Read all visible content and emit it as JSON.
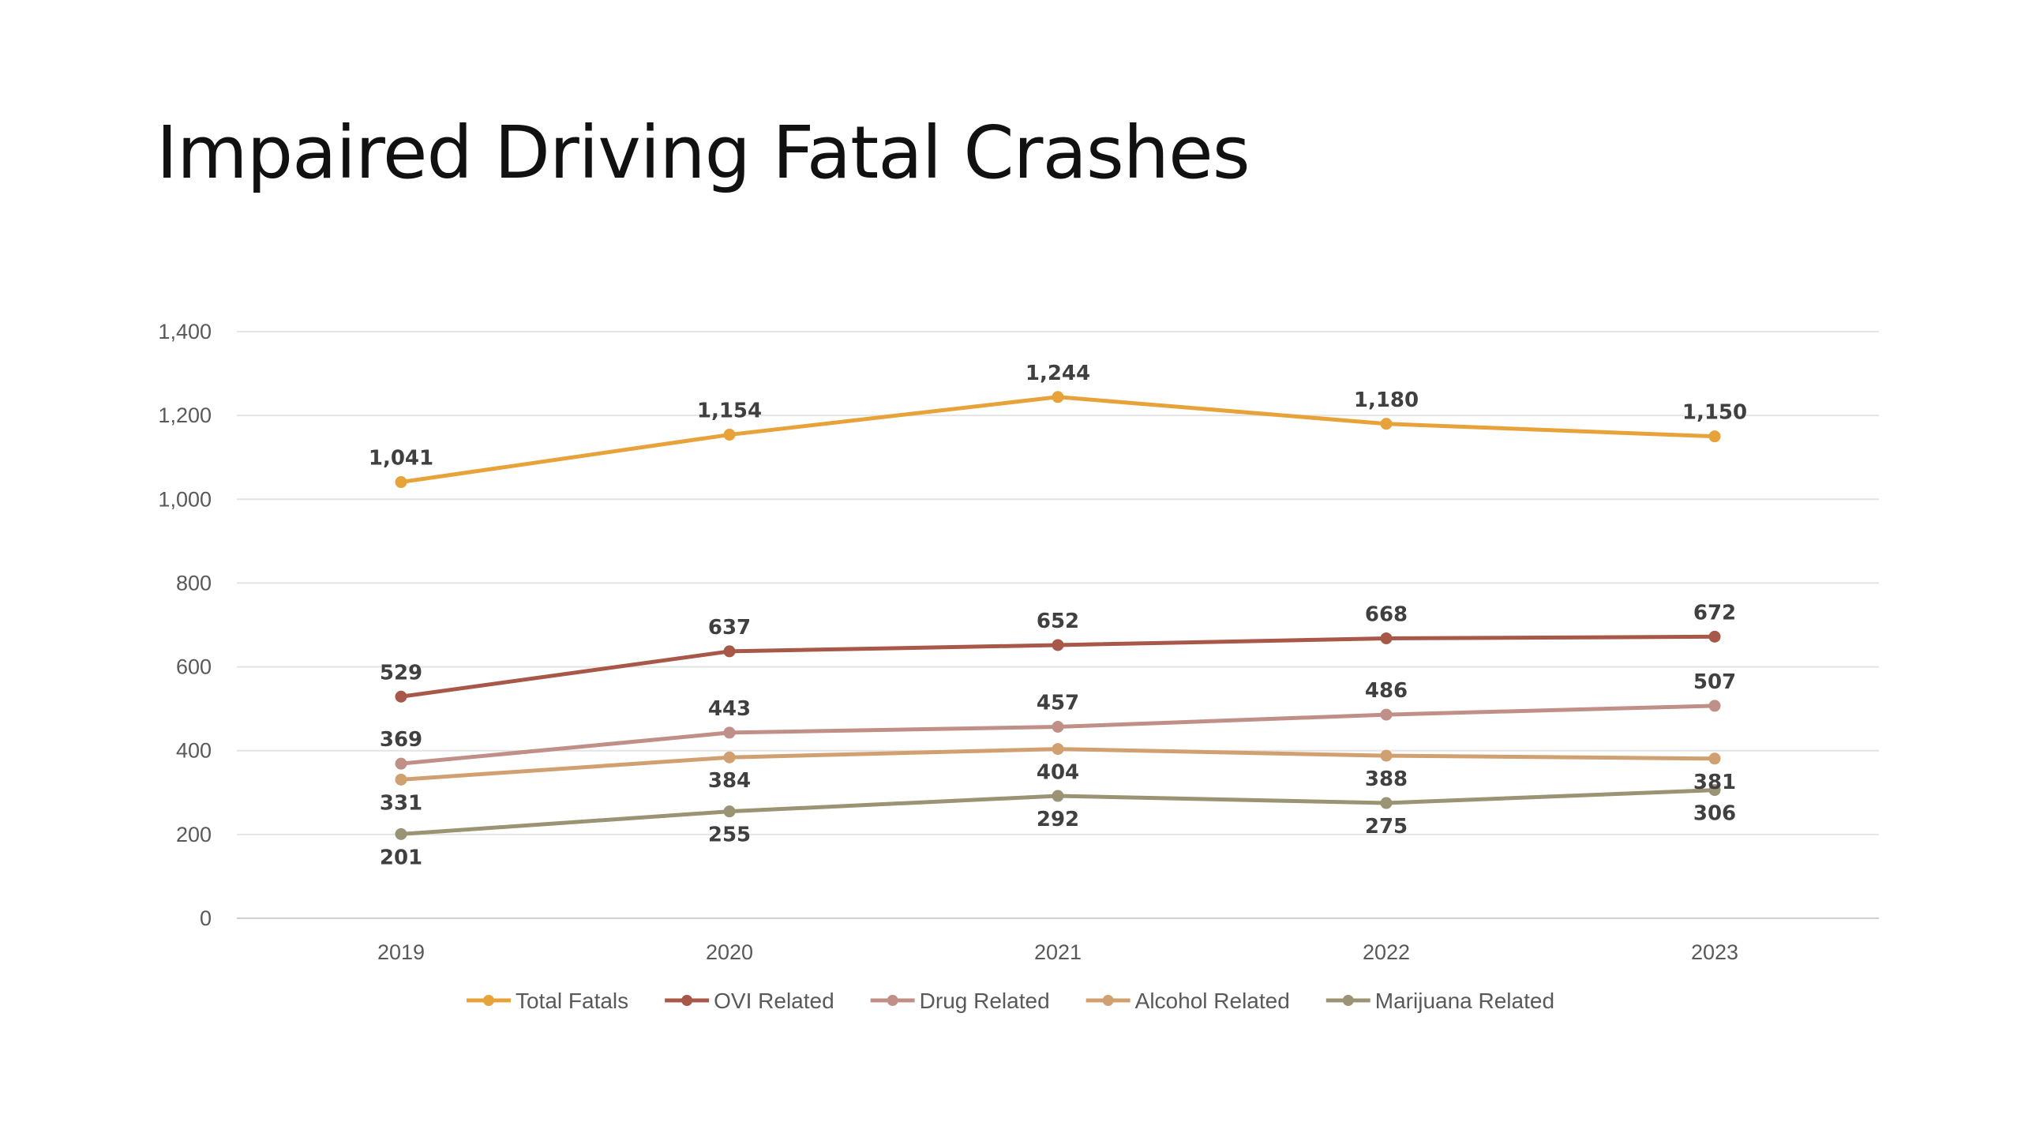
{
  "slide": {
    "title": "Impaired Driving Fatal Crashes"
  },
  "chart_data": {
    "type": "line",
    "title": "",
    "xlabel": "",
    "ylabel": "",
    "categories": [
      "2019",
      "2020",
      "2021",
      "2022",
      "2023"
    ],
    "ylim": [
      0,
      1400
    ],
    "yticks": [
      0,
      200,
      400,
      600,
      800,
      1000,
      1200,
      1400
    ],
    "ytick_labels": [
      "0",
      "200",
      "400",
      "600",
      "800",
      "1,000",
      "1,200",
      "1,400"
    ],
    "grid": true,
    "legend_position": "bottom",
    "series": [
      {
        "name": "Total Fatals",
        "color": "#E8A23A",
        "values": [
          1041,
          1154,
          1244,
          1180,
          1150
        ],
        "labels": [
          "1,041",
          "1,154",
          "1,244",
          "1,180",
          "1,150"
        ],
        "label_position": "above"
      },
      {
        "name": "OVI Related",
        "color": "#A85848",
        "values": [
          529,
          637,
          652,
          668,
          672
        ],
        "labels": [
          "529",
          "637",
          "652",
          "668",
          "672"
        ],
        "label_position": "above"
      },
      {
        "name": "Drug Related",
        "color": "#C09088",
        "values": [
          369,
          443,
          457,
          486,
          507
        ],
        "labels": [
          "369",
          "443",
          "457",
          "486",
          "507"
        ],
        "label_position": "above"
      },
      {
        "name": "Alcohol Related",
        "color": "#D1A070",
        "values": [
          331,
          384,
          404,
          388,
          381
        ],
        "labels": [
          "331",
          "384",
          "404",
          "388",
          "381"
        ],
        "label_position": "below"
      },
      {
        "name": "Marijuana Related",
        "color": "#9A9474",
        "values": [
          201,
          255,
          292,
          275,
          306
        ],
        "labels": [
          "201",
          "255",
          "292",
          "275",
          "306"
        ],
        "label_position": "below"
      }
    ]
  }
}
